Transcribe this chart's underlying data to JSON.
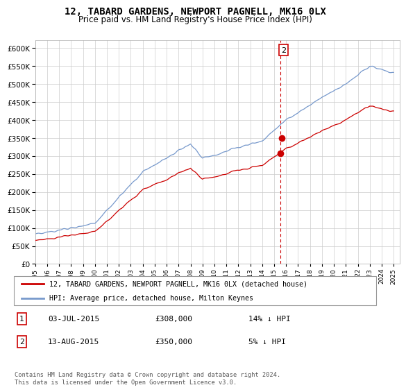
{
  "title": "12, TABARD GARDENS, NEWPORT PAGNELL, MK16 0LX",
  "subtitle": "Price paid vs. HM Land Registry's House Price Index (HPI)",
  "ylim": [
    0,
    620000
  ],
  "yticks": [
    0,
    50000,
    100000,
    150000,
    200000,
    250000,
    300000,
    350000,
    400000,
    450000,
    500000,
    550000,
    600000
  ],
  "xlim_start": 1995.0,
  "xlim_end": 2025.5,
  "sale1_date": 2015.5,
  "sale1_price": 308000,
  "sale1_label": "1",
  "sale2_date": 2015.63,
  "sale2_price": 350000,
  "sale2_label": "2",
  "red_line_color": "#cc0000",
  "blue_line_color": "#7799cc",
  "marker_color": "#cc0000",
  "vline_color": "#cc0000",
  "box_color": "#cc0000",
  "legend_label_red": "12, TABARD GARDENS, NEWPORT PAGNELL, MK16 0LX (detached house)",
  "legend_label_blue": "HPI: Average price, detached house, Milton Keynes",
  "table_rows": [
    {
      "num": "1",
      "date": "03-JUL-2015",
      "price": "£308,000",
      "hpi": "14% ↓ HPI"
    },
    {
      "num": "2",
      "date": "13-AUG-2015",
      "price": "£350,000",
      "hpi": "5% ↓ HPI"
    }
  ],
  "footnote": "Contains HM Land Registry data © Crown copyright and database right 2024.\nThis data is licensed under the Open Government Licence v3.0.",
  "background_color": "#ffffff",
  "grid_color": "#cccccc"
}
